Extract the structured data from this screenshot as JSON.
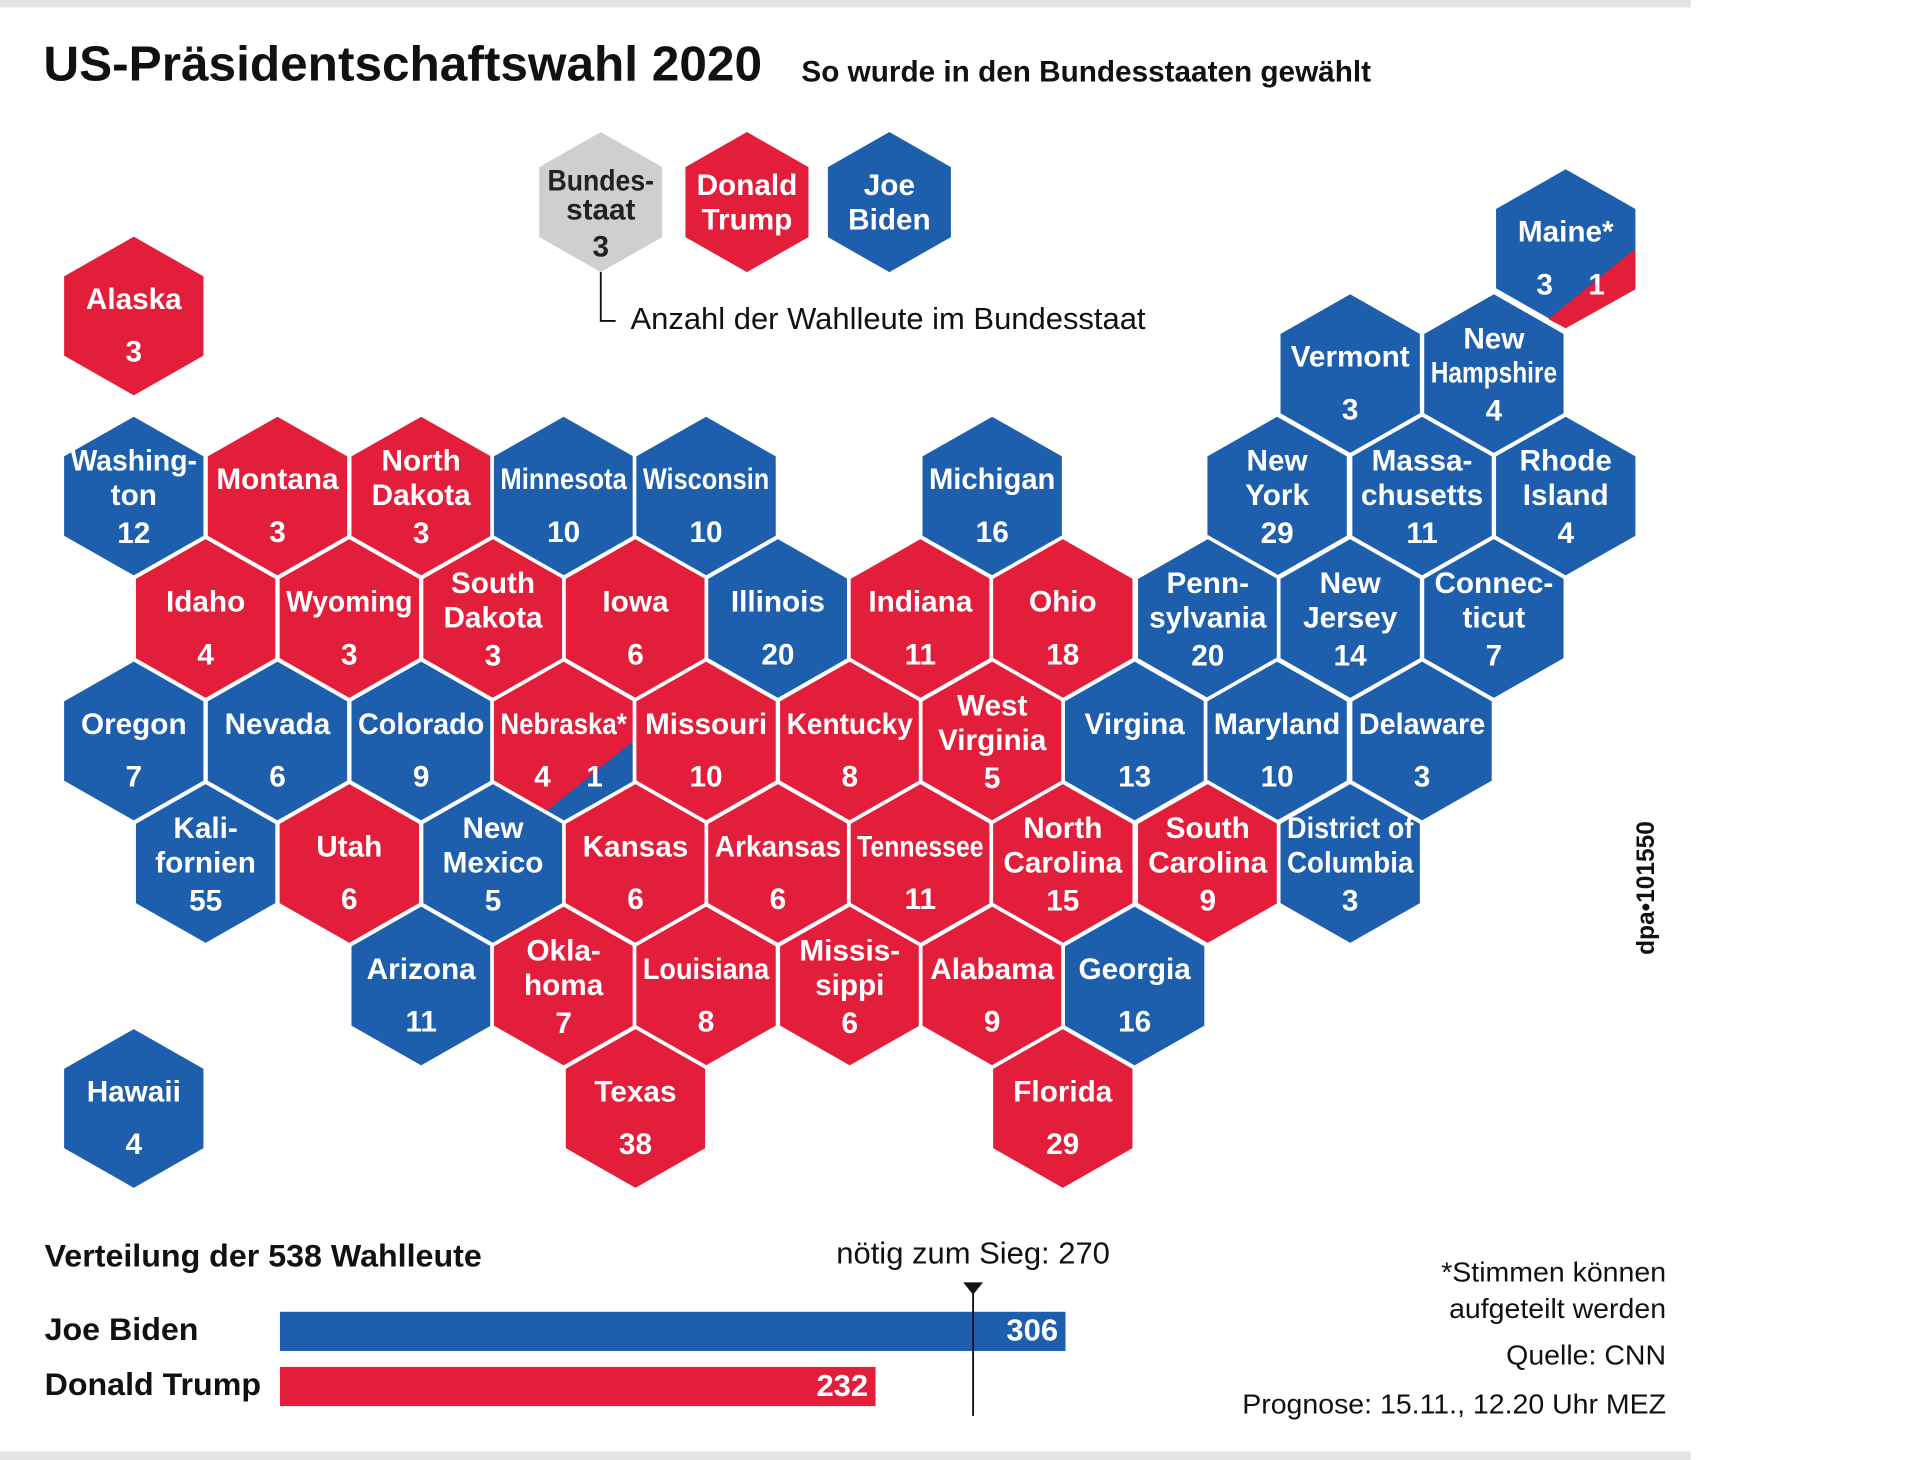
{
  "header": {
    "title": "US-Präsidentschaftswahl 2020",
    "subtitle": "So wurde in den Bundesstaaten gewählt"
  },
  "legend": {
    "example": {
      "name": [
        "Bundes-",
        "staat"
      ],
      "votes": 3,
      "color": "#cfcfcf"
    },
    "trump": {
      "name": [
        "Donald",
        "Trump"
      ],
      "color": "#e31e3b"
    },
    "biden": {
      "name": [
        "Joe",
        "Biden"
      ],
      "color": "#1d5fad"
    },
    "note": "Anzahl der Wahlleute im Bundesstaat"
  },
  "states": [
    {
      "name": [
        "Alaska"
      ],
      "votes": [
        3
      ],
      "colors": [
        "#e31e3b"
      ]
    },
    {
      "name": [
        "Maine*"
      ],
      "votes": [
        3,
        1
      ],
      "colors": [
        "#1d5fad",
        "#e31e3b"
      ]
    },
    {
      "name": [
        "Vermont"
      ],
      "votes": [
        3
      ],
      "colors": [
        "#1d5fad"
      ]
    },
    {
      "name": [
        "New",
        "Hampshire"
      ],
      "votes": [
        4
      ],
      "colors": [
        "#1d5fad"
      ]
    },
    {
      "name": [
        "Washing-",
        "ton"
      ],
      "votes": [
        12
      ],
      "colors": [
        "#1d5fad"
      ]
    },
    {
      "name": [
        "Montana"
      ],
      "votes": [
        3
      ],
      "colors": [
        "#e31e3b"
      ]
    },
    {
      "name": [
        "North",
        "Dakota"
      ],
      "votes": [
        3
      ],
      "colors": [
        "#e31e3b"
      ]
    },
    {
      "name": [
        "Minnesota"
      ],
      "votes": [
        10
      ],
      "colors": [
        "#1d5fad"
      ]
    },
    {
      "name": [
        "Wisconsin"
      ],
      "votes": [
        10
      ],
      "colors": [
        "#1d5fad"
      ]
    },
    {
      "name": [
        "Michigan"
      ],
      "votes": [
        16
      ],
      "colors": [
        "#1d5fad"
      ]
    },
    {
      "name": [
        "New",
        "York"
      ],
      "votes": [
        29
      ],
      "colors": [
        "#1d5fad"
      ]
    },
    {
      "name": [
        "Massa-",
        "chusetts"
      ],
      "votes": [
        11
      ],
      "colors": [
        "#1d5fad"
      ]
    },
    {
      "name": [
        "Rhode",
        "Island"
      ],
      "votes": [
        4
      ],
      "colors": [
        "#1d5fad"
      ]
    },
    {
      "name": [
        "Idaho"
      ],
      "votes": [
        4
      ],
      "colors": [
        "#e31e3b"
      ]
    },
    {
      "name": [
        "Wyoming"
      ],
      "votes": [
        3
      ],
      "colors": [
        "#e31e3b"
      ]
    },
    {
      "name": [
        "South",
        "Dakota"
      ],
      "votes": [
        3
      ],
      "colors": [
        "#e31e3b"
      ]
    },
    {
      "name": [
        "Iowa"
      ],
      "votes": [
        6
      ],
      "colors": [
        "#e31e3b"
      ]
    },
    {
      "name": [
        "Illinois"
      ],
      "votes": [
        20
      ],
      "colors": [
        "#1d5fad"
      ]
    },
    {
      "name": [
        "Indiana"
      ],
      "votes": [
        11
      ],
      "colors": [
        "#e31e3b"
      ]
    },
    {
      "name": [
        "Ohio"
      ],
      "votes": [
        18
      ],
      "colors": [
        "#e31e3b"
      ]
    },
    {
      "name": [
        "Penn-",
        "sylvania"
      ],
      "votes": [
        20
      ],
      "colors": [
        "#1d5fad"
      ]
    },
    {
      "name": [
        "New",
        "Jersey"
      ],
      "votes": [
        14
      ],
      "colors": [
        "#1d5fad"
      ]
    },
    {
      "name": [
        "Connec-",
        "ticut"
      ],
      "votes": [
        7
      ],
      "colors": [
        "#1d5fad"
      ]
    },
    {
      "name": [
        "Oregon"
      ],
      "votes": [
        7
      ],
      "colors": [
        "#1d5fad"
      ]
    },
    {
      "name": [
        "Nevada"
      ],
      "votes": [
        6
      ],
      "colors": [
        "#1d5fad"
      ]
    },
    {
      "name": [
        "Colorado"
      ],
      "votes": [
        9
      ],
      "colors": [
        "#1d5fad"
      ]
    },
    {
      "name": [
        "Nebraska*"
      ],
      "votes": [
        4,
        1
      ],
      "colors": [
        "#e31e3b",
        "#1d5fad"
      ]
    },
    {
      "name": [
        "Missouri"
      ],
      "votes": [
        10
      ],
      "colors": [
        "#e31e3b"
      ]
    },
    {
      "name": [
        "Kentucky"
      ],
      "votes": [
        8
      ],
      "colors": [
        "#e31e3b"
      ]
    },
    {
      "name": [
        "West",
        "Virginia"
      ],
      "votes": [
        5
      ],
      "colors": [
        "#e31e3b"
      ]
    },
    {
      "name": [
        "Virgina"
      ],
      "votes": [
        13
      ],
      "colors": [
        "#1d5fad"
      ]
    },
    {
      "name": [
        "Maryland"
      ],
      "votes": [
        10
      ],
      "colors": [
        "#1d5fad"
      ]
    },
    {
      "name": [
        "Delaware"
      ],
      "votes": [
        3
      ],
      "colors": [
        "#1d5fad"
      ]
    },
    {
      "name": [
        "Kali-",
        "fornien"
      ],
      "votes": [
        55
      ],
      "colors": [
        "#1d5fad"
      ]
    },
    {
      "name": [
        "Utah"
      ],
      "votes": [
        6
      ],
      "colors": [
        "#e31e3b"
      ]
    },
    {
      "name": [
        "New",
        "Mexico"
      ],
      "votes": [
        5
      ],
      "colors": [
        "#1d5fad"
      ]
    },
    {
      "name": [
        "Kansas"
      ],
      "votes": [
        6
      ],
      "colors": [
        "#e31e3b"
      ]
    },
    {
      "name": [
        "Arkansas"
      ],
      "votes": [
        6
      ],
      "colors": [
        "#e31e3b"
      ]
    },
    {
      "name": [
        "Tennessee"
      ],
      "votes": [
        11
      ],
      "colors": [
        "#e31e3b"
      ]
    },
    {
      "name": [
        "North",
        "Carolina"
      ],
      "votes": [
        15
      ],
      "colors": [
        "#e31e3b"
      ]
    },
    {
      "name": [
        "South",
        "Carolina"
      ],
      "votes": [
        9
      ],
      "colors": [
        "#e31e3b"
      ]
    },
    {
      "name": [
        "District of",
        "Columbia"
      ],
      "votes": [
        3
      ],
      "colors": [
        "#1d5fad"
      ]
    },
    {
      "name": [
        "Arizona"
      ],
      "votes": [
        11
      ],
      "colors": [
        "#1d5fad"
      ]
    },
    {
      "name": [
        "Okla-",
        "homa"
      ],
      "votes": [
        7
      ],
      "colors": [
        "#e31e3b"
      ]
    },
    {
      "name": [
        "Louisiana"
      ],
      "votes": [
        8
      ],
      "colors": [
        "#e31e3b"
      ]
    },
    {
      "name": [
        "Missis-",
        "sippi"
      ],
      "votes": [
        6
      ],
      "colors": [
        "#e31e3b"
      ]
    },
    {
      "name": [
        "Alabama"
      ],
      "votes": [
        9
      ],
      "colors": [
        "#e31e3b"
      ]
    },
    {
      "name": [
        "Georgia"
      ],
      "votes": [
        16
      ],
      "colors": [
        "#1d5fad"
      ]
    },
    {
      "name": [
        "Texas"
      ],
      "votes": [
        38
      ],
      "colors": [
        "#e31e3b"
      ]
    },
    {
      "name": [
        "Florida"
      ],
      "votes": [
        29
      ],
      "colors": [
        "#e31e3b"
      ]
    },
    {
      "name": [
        "Hawaii"
      ],
      "votes": [
        4
      ],
      "colors": [
        "#1d5fad"
      ]
    }
  ],
  "chart_data": {
    "type": "bar",
    "title": "Verteilung der 538 Wahlleute",
    "categories": [
      "Joe Biden",
      "Donald Trump"
    ],
    "values": [
      306,
      232
    ],
    "colors": [
      "#1d5fad",
      "#e31e3b"
    ],
    "xlim": [
      0,
      538
    ],
    "threshold": {
      "value": 270,
      "label": "nötig zum Sieg: 270"
    }
  },
  "notes": [
    "*Stimmen können",
    "aufgeteilt werden",
    "Quelle: CNN",
    "Prognose: 15.11., 12.20 Uhr MEZ"
  ],
  "credit": "dpa•101550"
}
